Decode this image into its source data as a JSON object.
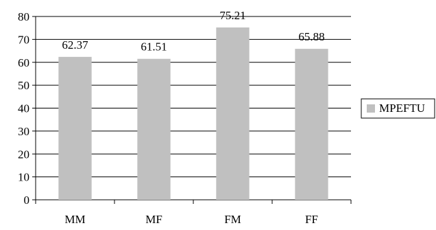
{
  "chart_data": {
    "type": "bar",
    "categories": [
      "MM",
      "MF",
      "FM",
      "FF"
    ],
    "series": [
      {
        "name": "MPEFTU",
        "values": [
          62.37,
          61.51,
          75.21,
          65.88
        ],
        "color": "#c0c0c0"
      }
    ],
    "data_labels": [
      "62.37",
      "61.51",
      "75.21",
      "65.88"
    ],
    "title": "",
    "xlabel": "",
    "ylabel": "",
    "ylim": [
      0,
      80
    ],
    "yticks": [
      0,
      10,
      20,
      30,
      40,
      50,
      60,
      70,
      80
    ],
    "grid": true,
    "legend": {
      "position": "right",
      "entries": [
        "MPEFTU"
      ]
    }
  }
}
